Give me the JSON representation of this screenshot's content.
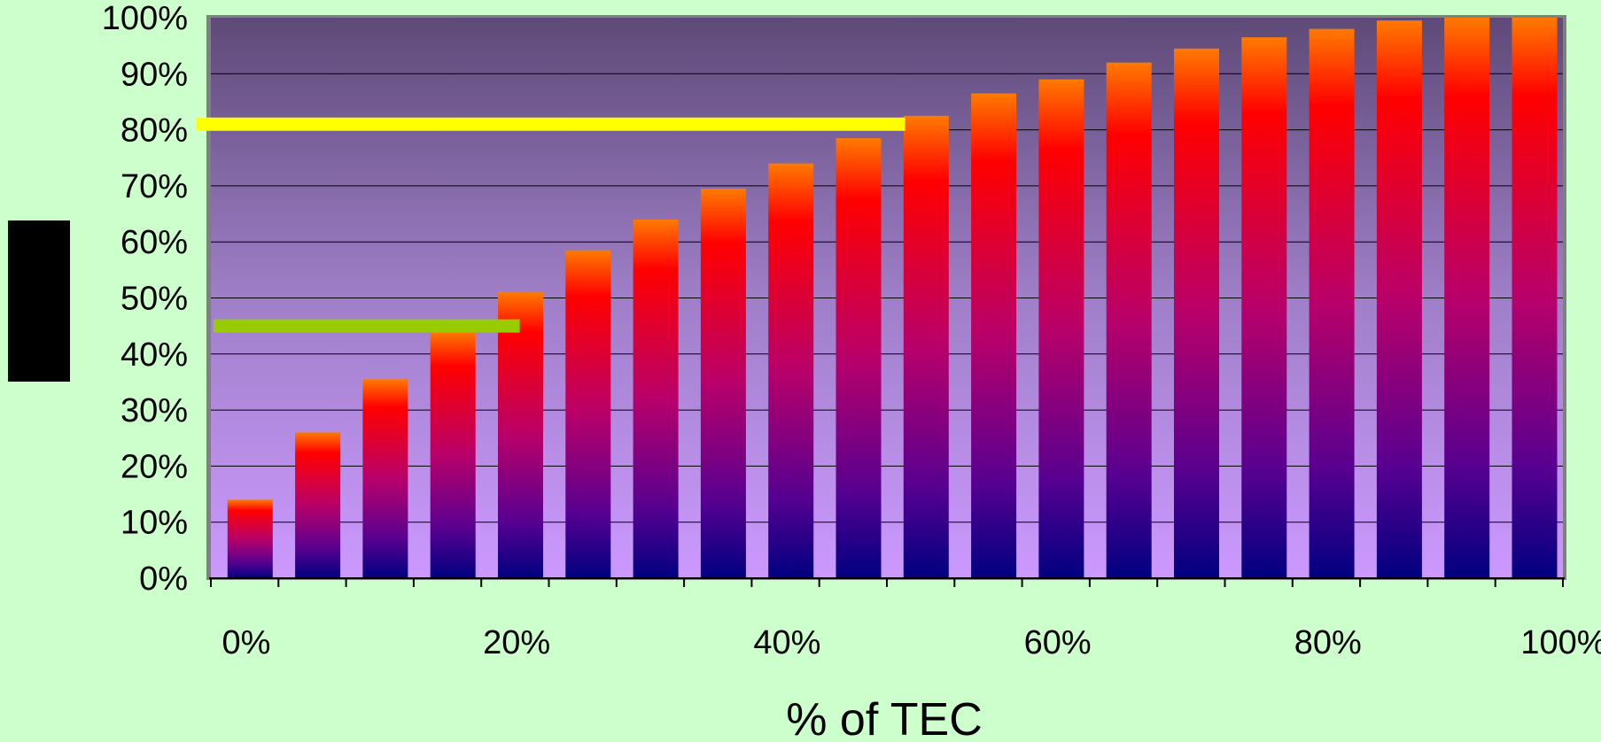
{
  "chart_data": {
    "type": "bar",
    "title": "",
    "xlabel": "% of TEC",
    "ylabel": "",
    "x_tick_labels": [
      "0%",
      "20%",
      "40%",
      "60%",
      "80%",
      "100%"
    ],
    "y_tick_labels": [
      "0%",
      "10%",
      "20%",
      "30%",
      "40%",
      "50%",
      "60%",
      "70%",
      "80%",
      "90%",
      "100%"
    ],
    "ylim": [
      0,
      100
    ],
    "x_range": [
      0,
      100
    ],
    "grid": true,
    "bar_x": [
      5,
      10,
      15,
      20,
      25,
      30,
      35,
      40,
      45,
      50,
      55,
      60,
      65,
      70,
      75,
      80,
      85,
      90,
      95,
      100
    ],
    "values": [
      14,
      26,
      35.5,
      44,
      51,
      58.5,
      64,
      69.5,
      74,
      78.5,
      82.5,
      86.5,
      89,
      92,
      94.5,
      96.5,
      98,
      99.5,
      100,
      100
    ],
    "reference_lines": [
      {
        "color": "#FFFF00",
        "y": 81,
        "x_end": 52
      },
      {
        "color": "#99CC00",
        "y": 45,
        "x_end": 23.5
      }
    ],
    "colors": {
      "page_background": "#CCFFCC",
      "plot_top": "#5E4A78",
      "plot_bottom": "#CC99FF",
      "bar_top": "#FF7A00",
      "bar_mid": "#FF0000",
      "bar_low": "#990077",
      "bar_bottom": "#000080",
      "plot_frame": "#808080",
      "y_label_box": "#000000"
    }
  }
}
